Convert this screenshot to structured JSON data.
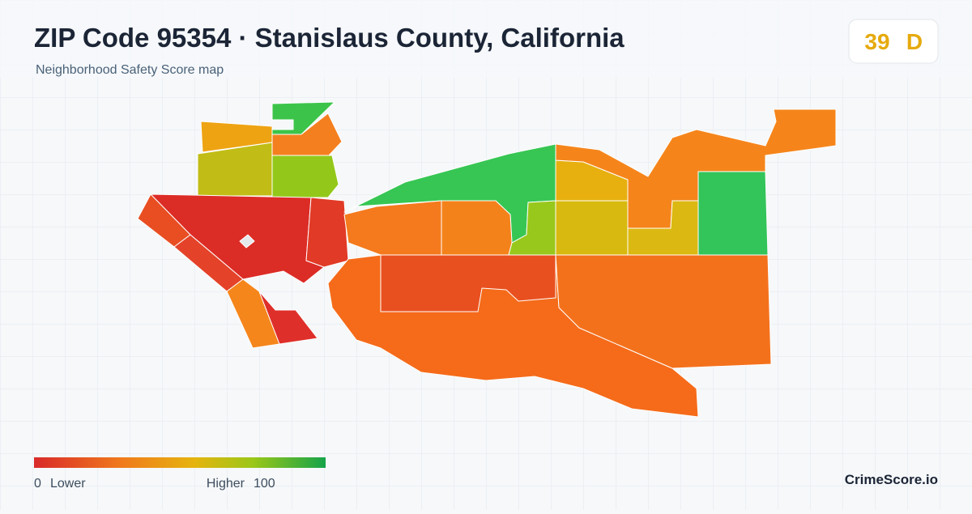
{
  "header": {
    "title": "ZIP Code 95354 · Stanislaus County, California",
    "subtitle": "Neighborhood Safety Score map"
  },
  "score": {
    "value": 39,
    "grade": "D"
  },
  "legend": {
    "min": 0,
    "min_label": "Lower",
    "max_label": "Higher",
    "max": 100
  },
  "footer": {
    "brand": "CrimeScore.io"
  }
}
